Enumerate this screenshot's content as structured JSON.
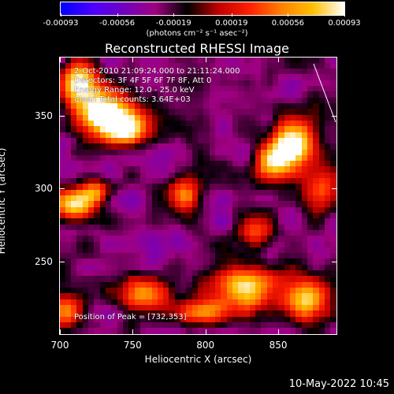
{
  "chart_data": {
    "type": "heatmap",
    "title": "Reconstructed RHESSI Image",
    "xlabel": "Heliocentric X (arcsec)",
    "ylabel": "Heliocentric Y (arcsec)",
    "xlim": [
      700,
      890
    ],
    "ylim": [
      200,
      390
    ],
    "xticks": [
      "700",
      "750",
      "800",
      "850"
    ],
    "xtick_values": [
      700,
      750,
      800,
      850
    ],
    "yticks": [
      "250",
      "300",
      "350"
    ],
    "ytick_values": [
      250,
      300,
      350
    ],
    "colorbar": {
      "ticks": [
        "-0.00093",
        "-0.00056",
        "-0.00019",
        "0.00019",
        "0.00056",
        "0.00093"
      ],
      "tick_values": [
        -0.00093,
        -0.00056,
        -0.00019,
        0.00019,
        0.00056,
        0.00093
      ],
      "units": "(photons cm⁻² s⁻¹ asec⁻²)",
      "colors": [
        "#0000ff",
        "#4b00ff",
        "#7000c0",
        "#a00080",
        "#000000",
        "#c00000",
        "#ff2000",
        "#ff8000",
        "#ffc000",
        "#ffffff"
      ]
    },
    "annotations": {
      "time_range": "2-Oct-2010 21:09:24.000 to 21:11:24.000",
      "detectors": "Detectors: 3F 4F 5F 6F 7F 8F, Att 0",
      "energy": "Energy Range: 12.0 - 25.0 keV",
      "clean": "Clean     Total counts: 3.64E+03",
      "peak": "Position of Peak = [732,353]"
    },
    "peak": [
      732,
      353
    ],
    "bright_sources": [
      {
        "x": 730,
        "y": 352,
        "strength": 1.0,
        "sx": 14,
        "sy": 10
      },
      {
        "x": 712,
        "y": 372,
        "strength": 0.8,
        "sx": 10,
        "sy": 10
      },
      {
        "x": 745,
        "y": 340,
        "strength": 0.7,
        "sx": 12,
        "sy": 8
      },
      {
        "x": 860,
        "y": 330,
        "strength": 0.95,
        "sx": 10,
        "sy": 12
      },
      {
        "x": 845,
        "y": 318,
        "strength": 0.6,
        "sx": 8,
        "sy": 8
      },
      {
        "x": 785,
        "y": 295,
        "strength": 0.65,
        "sx": 8,
        "sy": 9
      },
      {
        "x": 710,
        "y": 288,
        "strength": 0.7,
        "sx": 10,
        "sy": 8
      },
      {
        "x": 725,
        "y": 298,
        "strength": 0.5,
        "sx": 8,
        "sy": 6
      },
      {
        "x": 760,
        "y": 228,
        "strength": 0.6,
        "sx": 12,
        "sy": 8
      },
      {
        "x": 830,
        "y": 232,
        "strength": 0.75,
        "sx": 18,
        "sy": 10
      },
      {
        "x": 870,
        "y": 222,
        "strength": 0.7,
        "sx": 10,
        "sy": 10
      },
      {
        "x": 800,
        "y": 215,
        "strength": 0.55,
        "sx": 12,
        "sy": 6
      },
      {
        "x": 705,
        "y": 215,
        "strength": 0.5,
        "sx": 10,
        "sy": 8
      },
      {
        "x": 880,
        "y": 300,
        "strength": 0.45,
        "sx": 8,
        "sy": 10
      },
      {
        "x": 835,
        "y": 270,
        "strength": 0.4,
        "sx": 8,
        "sy": 8
      }
    ]
  },
  "timestamp": "10-May-2022 10:45"
}
